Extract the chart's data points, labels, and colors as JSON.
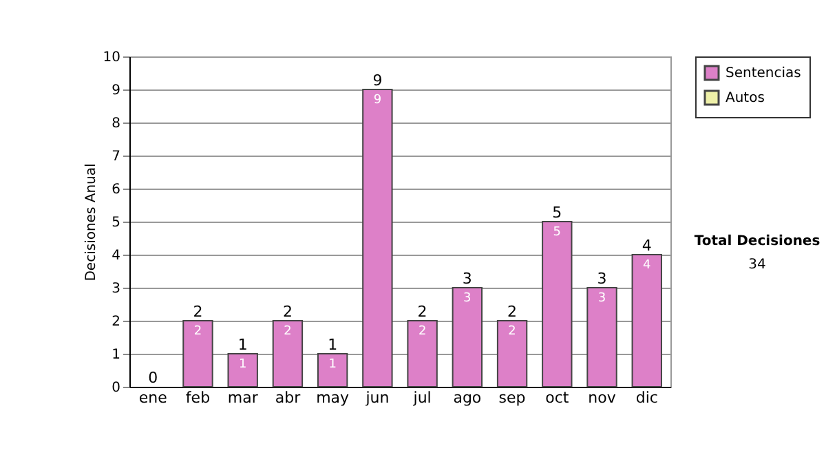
{
  "chart_data": {
    "type": "bar",
    "stacked": true,
    "ylabel": "Decisiones Anual",
    "categories": [
      "ene",
      "feb",
      "mar",
      "abr",
      "may",
      "jun",
      "jul",
      "ago",
      "sep",
      "oct",
      "nov",
      "dic"
    ],
    "series": [
      {
        "name": "Sentencias",
        "color": "#dd80c8",
        "values": [
          0,
          2,
          1,
          2,
          1,
          9,
          2,
          3,
          2,
          5,
          3,
          4
        ],
        "value_labels": [
          null,
          "2",
          "1",
          "2",
          "1",
          "9",
          "2",
          "3",
          "2",
          "5",
          "3",
          "4"
        ]
      },
      {
        "name": "Autos",
        "color": "#eef0a8",
        "values": [
          0,
          0,
          0,
          0,
          0,
          0,
          0,
          0,
          0,
          0,
          0,
          0
        ]
      }
    ],
    "totals": [
      "0",
      "2",
      "1",
      "2",
      "1",
      "9",
      "2",
      "3",
      "2",
      "5",
      "3",
      "4"
    ],
    "ylim": [
      0,
      10
    ],
    "yticks": [
      0,
      1,
      2,
      3,
      4,
      5,
      6,
      7,
      8,
      9,
      10
    ],
    "grid": "y",
    "legend": "right",
    "annotations": [
      "Total Decisiones",
      "34"
    ]
  }
}
